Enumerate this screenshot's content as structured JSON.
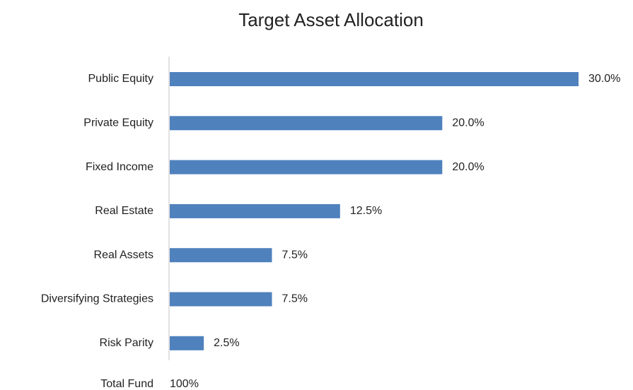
{
  "chart_data": {
    "type": "bar",
    "orientation": "horizontal",
    "title": "Target Asset Allocation",
    "categories": [
      "Public Equity",
      "Private Equity",
      "Fixed Income",
      "Real Estate",
      "Real Assets",
      "Diversifying Strategies",
      "Risk Parity"
    ],
    "values": [
      30,
      20,
      20,
      12.5,
      7.5,
      7.5,
      2.5
    ],
    "value_labels": [
      "30.0%",
      "20.0%",
      "20.0%",
      "12.5%",
      "7.5%",
      "7.5%",
      "2.5%"
    ],
    "color": "#4f81bd",
    "total_label": "Total Fund",
    "total_value_label": "100%"
  }
}
